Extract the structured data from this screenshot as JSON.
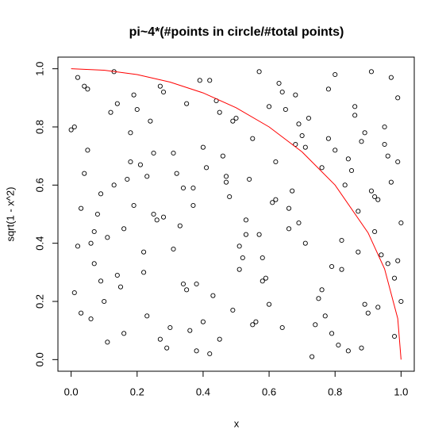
{
  "chart_data": {
    "type": "scatter",
    "title": "pi~4*(#points in circle/#total points)",
    "x_label": "x",
    "y_label": "sqrt(1 - x^2)",
    "xlim": [
      -0.04,
      1.04
    ],
    "ylim": [
      -0.04,
      1.04
    ],
    "xticks": [
      {
        "value": 0,
        "label": "0.0"
      },
      0.2,
      0.4,
      0.6,
      0.8,
      {
        "value": 1,
        "label": "1.0"
      }
    ],
    "yticks": [
      {
        "value": 0,
        "label": "0.0"
      },
      0.2,
      0.4,
      0.6,
      0.8,
      {
        "value": 1,
        "label": "1.0"
      }
    ],
    "series": [
      {
        "color": "#000000",
        "x": [
          0.02,
          0.11,
          0.23,
          0.35,
          0.47,
          0.58,
          0.69,
          0.81,
          0.93,
          0.99,
          0.05,
          0.16,
          0.28,
          0.39,
          0.51,
          0.62,
          0.74,
          0.86,
          0.97,
          0.01,
          0.09,
          0.19,
          0.31,
          0.42,
          0.55,
          0.66,
          0.78,
          0.89,
          0.95,
          0.04,
          0.14,
          0.25,
          0.37,
          0.49,
          0.6,
          0.71,
          0.83,
          0.91,
          0.98,
          0.07,
          0.18,
          0.3,
          0.41,
          0.53,
          0.64,
          0.76,
          0.87,
          0.96,
          0.03,
          0.12,
          0.22,
          0.34,
          0.45,
          0.57,
          0.68,
          0.8,
          0.9,
          1.0,
          0.06,
          0.17,
          0.27,
          0.38,
          0.5,
          0.61,
          0.73,
          0.84,
          0.94,
          0.0,
          0.1,
          0.21,
          0.33,
          0.44,
          0.56,
          0.67,
          0.79,
          0.88,
          0.99,
          0.08,
          0.2,
          0.29,
          0.4,
          0.52,
          0.63,
          0.75,
          0.85,
          0.92,
          0.02,
          0.13,
          0.24,
          0.36,
          0.48,
          0.59,
          0.7,
          0.82,
          0.93,
          0.05,
          0.15,
          0.26,
          0.38,
          0.46,
          0.54,
          0.65,
          0.77,
          0.87,
          0.97,
          0.01,
          0.11,
          0.22,
          0.32,
          0.43,
          0.57,
          0.69,
          0.8,
          0.91,
          0.98,
          0.07,
          0.18,
          0.28,
          0.4,
          0.51,
          0.62,
          0.72,
          0.84,
          0.95,
          0.03,
          0.14,
          0.25,
          0.35,
          0.47,
          0.58,
          0.68,
          0.79,
          0.89,
          1.0,
          0.09,
          0.19,
          0.31,
          0.42,
          0.53,
          0.64,
          0.76,
          0.86,
          0.96,
          0.04,
          0.16,
          0.27,
          0.37,
          0.49,
          0.6,
          0.71,
          0.82,
          0.92,
          0.06,
          0.13,
          0.23,
          0.34,
          0.45,
          0.55,
          0.66,
          0.78,
          0.88,
          0.99
        ],
        "y": [
          0.97,
          0.42,
          0.15,
          0.88,
          0.63,
          0.27,
          0.81,
          0.05,
          0.55,
          0.34,
          0.72,
          0.09,
          0.49,
          0.96,
          0.31,
          0.68,
          0.12,
          0.84,
          0.61,
          0.23,
          0.57,
          0.91,
          0.38,
          0.02,
          0.76,
          0.45,
          0.93,
          0.19,
          0.8,
          0.64,
          0.29,
          0.71,
          0.53,
          0.17,
          0.87,
          0.4,
          0.6,
          0.99,
          0.08,
          0.33,
          0.78,
          0.11,
          0.66,
          0.48,
          0.92,
          0.24,
          0.37,
          0.7,
          0.52,
          0.85,
          0.3,
          0.59,
          0.07,
          0.43,
          0.74,
          0.98,
          0.16,
          0.47,
          0.14,
          0.62,
          0.94,
          0.26,
          0.83,
          0.54,
          0.01,
          0.69,
          0.36,
          0.79,
          0.2,
          0.67,
          0.46,
          0.89,
          0.13,
          0.58,
          0.32,
          0.75,
          0.9,
          0.5,
          0.86,
          0.04,
          0.73,
          0.35,
          0.95,
          0.21,
          0.65,
          0.44,
          0.39,
          0.6,
          0.82,
          0.1,
          0.56,
          0.28,
          0.77,
          0.41,
          0.18,
          0.93,
          0.25,
          0.48,
          0.03,
          0.7,
          0.62,
          0.86,
          0.15,
          0.51,
          0.97,
          0.8,
          0.06,
          0.37,
          0.64,
          0.22,
          0.99,
          0.47,
          0.72,
          0.58,
          0.28,
          0.44,
          0.68,
          0.92,
          0.13,
          0.39,
          0.55,
          0.83,
          0.03,
          0.74,
          0.16,
          0.88,
          0.5,
          0.24,
          0.61,
          0.35,
          0.91,
          0.09,
          0.78,
          0.2,
          0.27,
          0.53,
          0.71,
          0.96,
          0.43,
          0.11,
          0.66,
          0.87,
          0.33,
          0.94,
          0.45,
          0.07,
          0.59,
          0.82,
          0.19,
          0.73,
          0.31,
          0.56,
          0.4,
          0.99,
          0.63,
          0.26,
          0.85,
          0.12,
          0.52,
          0.76,
          0.04,
          0.68
        ]
      },
      {
        "type": "line",
        "color": "#ff0000",
        "x": [
          0,
          0.1,
          0.2,
          0.3,
          0.4,
          0.5,
          0.6,
          0.7,
          0.8,
          0.9,
          0.95,
          0.99,
          1
        ],
        "y": [
          1,
          0.995,
          0.98,
          0.954,
          0.917,
          0.866,
          0.8,
          0.714,
          0.6,
          0.436,
          0.312,
          0.141,
          0
        ]
      }
    ]
  }
}
